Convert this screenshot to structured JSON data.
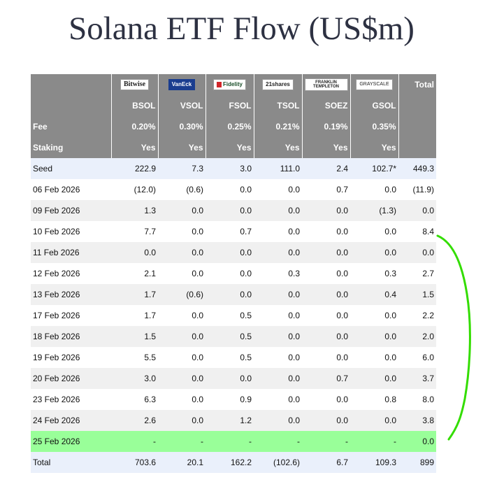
{
  "title": "Solana ETF Flow (US$m)",
  "issuers": [
    {
      "logo": "Bitwise",
      "logo_icon": "bitwise-logo-icon",
      "ticker": "BSOL",
      "fee": "0.20%",
      "staking": "Yes"
    },
    {
      "logo": "VanEck",
      "logo_icon": "vaneck-logo-icon",
      "ticker": "VSOL",
      "fee": "0.30%",
      "staking": "Yes"
    },
    {
      "logo": "Fidelity",
      "logo_icon": "fidelity-logo-icon",
      "ticker": "FSOL",
      "fee": "0.25%",
      "staking": "Yes"
    },
    {
      "logo": "21shares",
      "logo_icon": "21shares-logo-icon",
      "ticker": "TSOL",
      "fee": "0.21%",
      "staking": "Yes"
    },
    {
      "logo": "FRANKLIN TEMPLETON",
      "logo_icon": "franklin-templeton-logo-icon",
      "ticker": "SOEZ",
      "fee": "0.19%",
      "staking": "Yes"
    },
    {
      "logo": "GRAYSCALE",
      "logo_icon": "grayscale-logo-icon",
      "ticker": "GSOL",
      "fee": "0.35%",
      "staking": "Yes"
    }
  ],
  "header": {
    "total_label": "Total",
    "fee_label": "Fee",
    "staking_label": "Staking"
  },
  "rows": [
    {
      "date": "Seed",
      "values": [
        "222.9",
        "7.3",
        "3.0",
        "111.0",
        "2.4",
        "102.7*"
      ],
      "total": "449.3"
    },
    {
      "date": "06 Feb 2026",
      "values": [
        "(12.0)",
        "(0.6)",
        "0.0",
        "0.0",
        "0.7",
        "0.0"
      ],
      "total": "(11.9)"
    },
    {
      "date": "09 Feb 2026",
      "values": [
        "1.3",
        "0.0",
        "0.0",
        "0.0",
        "0.0",
        "(1.3)"
      ],
      "total": "0.0"
    },
    {
      "date": "10 Feb 2026",
      "values": [
        "7.7",
        "0.0",
        "0.7",
        "0.0",
        "0.0",
        "0.0"
      ],
      "total": "8.4"
    },
    {
      "date": "11 Feb 2026",
      "values": [
        "0.0",
        "0.0",
        "0.0",
        "0.0",
        "0.0",
        "0.0"
      ],
      "total": "0.0"
    },
    {
      "date": "12 Feb 2026",
      "values": [
        "2.1",
        "0.0",
        "0.0",
        "0.3",
        "0.0",
        "0.3"
      ],
      "total": "2.7"
    },
    {
      "date": "13 Feb 2026",
      "values": [
        "1.7",
        "(0.6)",
        "0.0",
        "0.0",
        "0.0",
        "0.4"
      ],
      "total": "1.5"
    },
    {
      "date": "17 Feb 2026",
      "values": [
        "1.7",
        "0.0",
        "0.5",
        "0.0",
        "0.0",
        "0.0"
      ],
      "total": "2.2"
    },
    {
      "date": "18 Feb 2026",
      "values": [
        "1.5",
        "0.0",
        "0.5",
        "0.0",
        "0.0",
        "0.0"
      ],
      "total": "2.0"
    },
    {
      "date": "19 Feb 2026",
      "values": [
        "5.5",
        "0.0",
        "0.5",
        "0.0",
        "0.0",
        "0.0"
      ],
      "total": "6.0"
    },
    {
      "date": "20 Feb 2026",
      "values": [
        "3.0",
        "0.0",
        "0.0",
        "0.0",
        "0.7",
        "0.0"
      ],
      "total": "3.7"
    },
    {
      "date": "23 Feb 2026",
      "values": [
        "6.3",
        "0.0",
        "0.9",
        "0.0",
        "0.0",
        "0.8"
      ],
      "total": "8.0"
    },
    {
      "date": "24 Feb 2026",
      "values": [
        "2.6",
        "0.0",
        "1.2",
        "0.0",
        "0.0",
        "0.0"
      ],
      "total": "3.8"
    },
    {
      "date": "25 Feb 2026",
      "values": [
        "-",
        "-",
        "-",
        "-",
        "-",
        "-"
      ],
      "total": "0.0",
      "highlight": true
    },
    {
      "date": "Total",
      "values": [
        "703.6",
        "20.1",
        "162.2",
        "(102.6)",
        "6.7",
        "109.3"
      ],
      "total": "899"
    }
  ],
  "colors": {
    "header_bg": "#8a8a8a",
    "negative": "#d40000",
    "highlight": "#99ff99",
    "annotation": "#33dd00"
  }
}
